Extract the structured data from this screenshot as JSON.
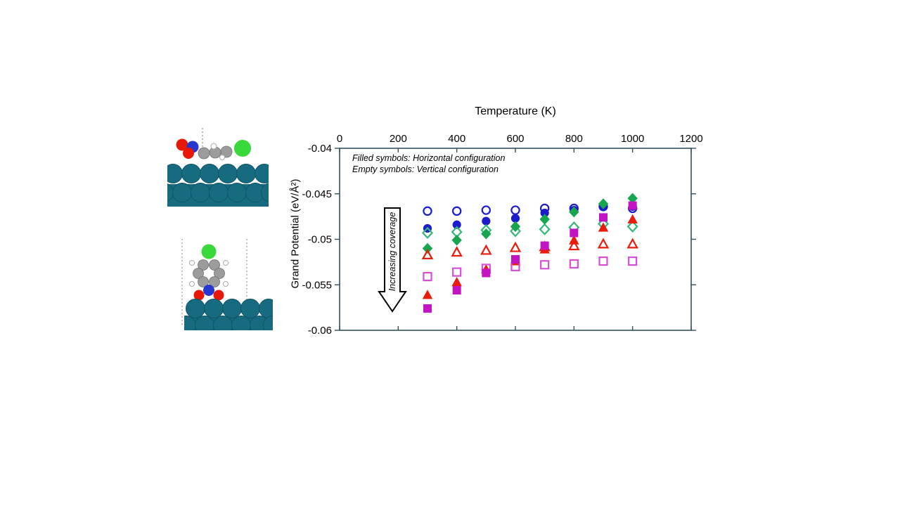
{
  "page": {
    "background": "#ffffff"
  },
  "colors": {
    "frame": "#33505e",
    "blue": "#1c1ccd",
    "green_filled": "#17a550",
    "green_open": "#35b778",
    "red": "#ea1c0d",
    "magenta_filled": "#c214c2",
    "magenta_open": "#d74fd7",
    "substrate": "#176b80",
    "substrate_edge": "#0d5566",
    "carbon": "#9c9c9c",
    "carbon_edge": "#6f6f6f",
    "hydrogen": "#ffffff",
    "hydrogen_edge": "#aaaaaa",
    "nitrogen": "#2636cf",
    "oxygen": "#e81809",
    "chlorine": "#39d83b"
  },
  "figures": {
    "horizontal_molecule": "horizontal adsorption configuration on substrate slab",
    "vertical_molecule": "vertical adsorption configuration on substrate slab"
  },
  "chart_data": {
    "type": "scatter",
    "title": "",
    "xlabel": "Temperature (K)",
    "ylabel": "Grand Potential (eV/Å²)",
    "xlim": [
      0,
      1200
    ],
    "ylim": [
      -0.06,
      -0.04
    ],
    "xticks": [
      0,
      200,
      400,
      600,
      800,
      1000,
      1200
    ],
    "yticks": [
      -0.04,
      -0.045,
      -0.05,
      -0.055,
      -0.06
    ],
    "ytick_labels": [
      "-0.04",
      "-0.045",
      "-0.05",
      "-0.055",
      "-0.06"
    ],
    "grid": false,
    "legend_position": "none",
    "annotations": [
      "Filled symbols: Horizontal configuration",
      "Empty symbols: Vertical configuration",
      "Increasing coverage"
    ],
    "x": [
      300,
      400,
      500,
      600,
      700,
      800,
      900,
      1000
    ],
    "series": [
      {
        "name": "vertical-config-coverage-1",
        "marker": "circle",
        "fill": "open",
        "color": "#1c1ccd",
        "values": [
          -0.0469,
          -0.0469,
          -0.0468,
          -0.0468,
          -0.0466,
          -0.0466,
          -0.0464,
          -0.0466
        ]
      },
      {
        "name": "horizontal-config-coverage-1",
        "marker": "circle",
        "fill": "filled",
        "color": "#1c1ccd",
        "values": [
          -0.0488,
          -0.0484,
          -0.048,
          -0.0477,
          -0.0471,
          -0.0468,
          -0.0463,
          -0.0464
        ]
      },
      {
        "name": "vertical-config-coverage-2",
        "marker": "diamond",
        "fill": "open",
        "color": "#35b778",
        "values": [
          -0.0493,
          -0.0492,
          -0.049,
          -0.0491,
          -0.0489,
          -0.0487,
          -0.0483,
          -0.0486
        ]
      },
      {
        "name": "horizontal-config-coverage-2",
        "marker": "diamond",
        "fill": "filled",
        "color": "#17a550",
        "values": [
          -0.051,
          -0.0501,
          -0.0494,
          -0.0486,
          -0.0478,
          -0.047,
          -0.0461,
          -0.0455
        ]
      },
      {
        "name": "vertical-config-coverage-3",
        "marker": "triangle",
        "fill": "open",
        "color": "#ea1c0d",
        "values": [
          -0.0517,
          -0.0514,
          -0.0512,
          -0.0509,
          -0.0508,
          -0.0507,
          -0.0505,
          -0.0505
        ]
      },
      {
        "name": "horizontal-config-coverage-3",
        "marker": "triangle",
        "fill": "filled",
        "color": "#ea1c0d",
        "values": [
          -0.0561,
          -0.0547,
          -0.0533,
          -0.0524,
          -0.0511,
          -0.0501,
          -0.0487,
          -0.0478
        ]
      },
      {
        "name": "vertical-config-coverage-4",
        "marker": "square",
        "fill": "open",
        "color": "#d74fd7",
        "values": [
          -0.0541,
          -0.0536,
          -0.0532,
          -0.053,
          -0.0528,
          -0.0527,
          -0.0524,
          -0.0524
        ]
      },
      {
        "name": "horizontal-config-coverage-4",
        "marker": "square",
        "fill": "filled",
        "color": "#c214c2",
        "values": [
          -0.0576,
          -0.0556,
          -0.0537,
          -0.0522,
          -0.0507,
          -0.0493,
          -0.0476,
          -0.0463
        ]
      }
    ]
  }
}
